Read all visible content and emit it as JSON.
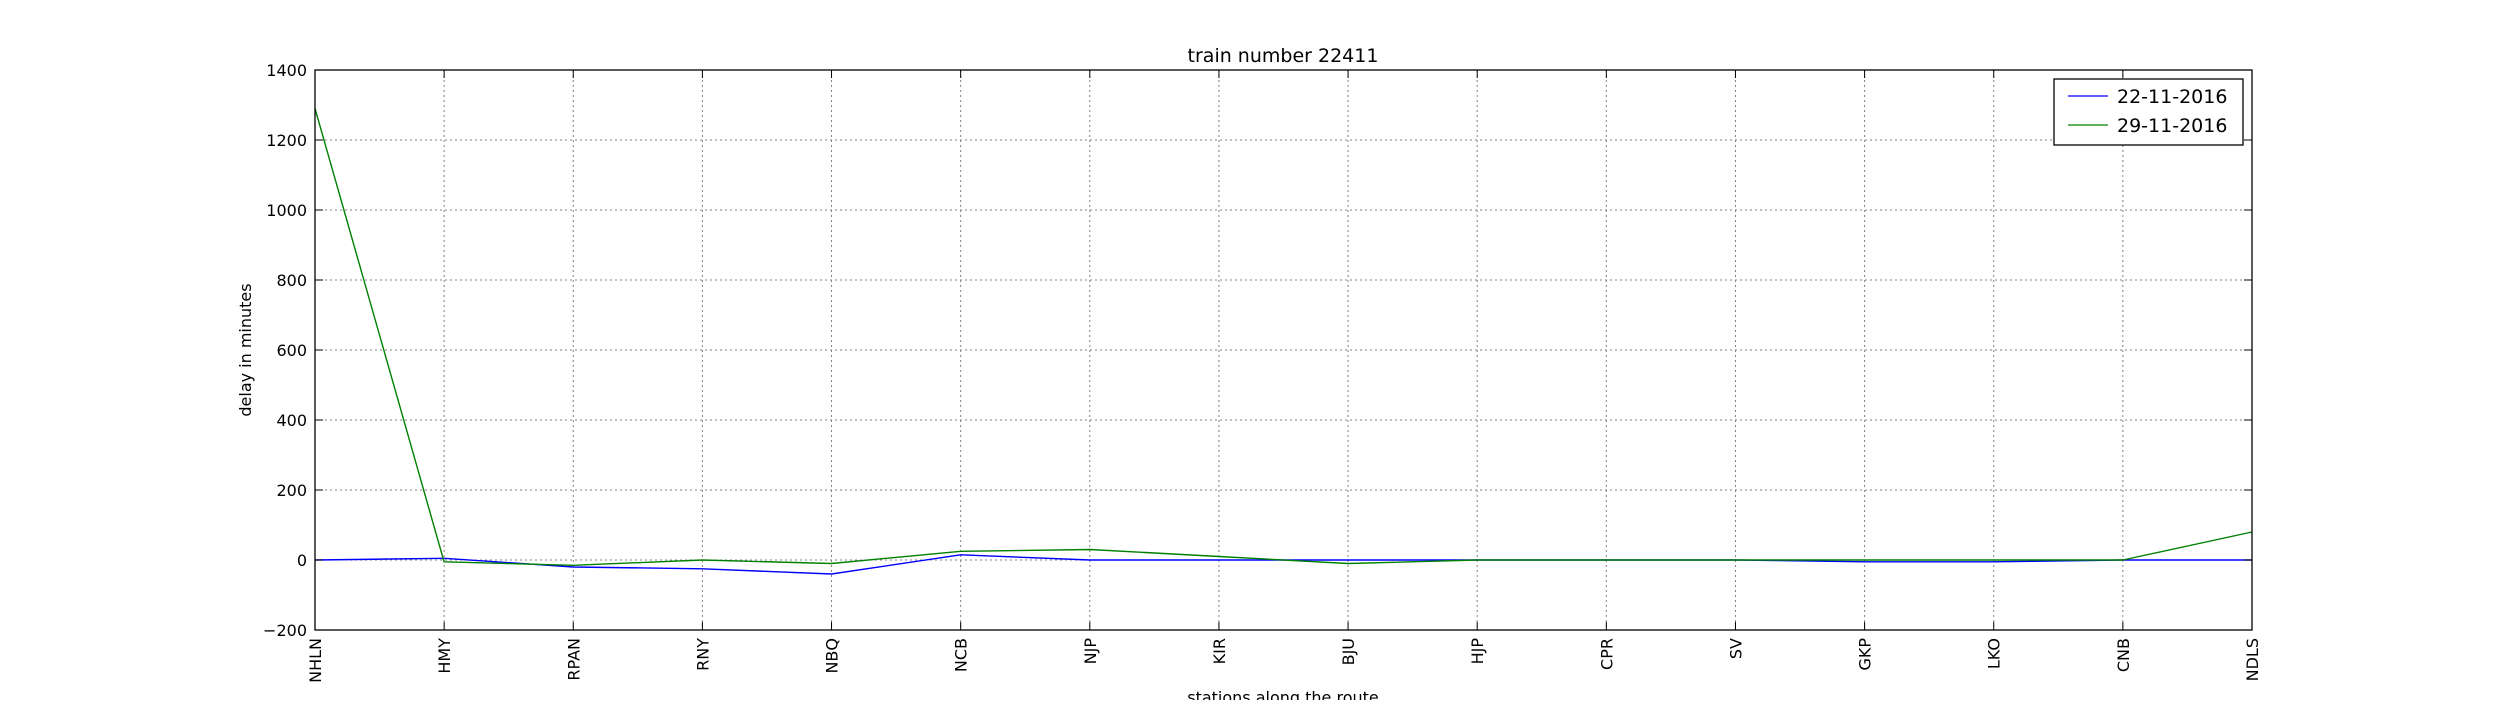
{
  "chart_data": {
    "type": "line",
    "title": "train number 22411",
    "xlabel": "stations along the route",
    "ylabel": "delay in minutes",
    "categories": [
      "NHLN",
      "HMY",
      "RPAN",
      "RNY",
      "NBQ",
      "NCB",
      "NJP",
      "KIR",
      "BJU",
      "HJP",
      "CPR",
      "SV",
      "GKP",
      "LKO",
      "CNB",
      "NDLS"
    ],
    "ylim": [
      -200,
      1400
    ],
    "yticks": [
      -200,
      0,
      200,
      400,
      600,
      800,
      1000,
      1200,
      1400
    ],
    "ytick_labels": [
      "−200",
      "0",
      "200",
      "400",
      "600",
      "800",
      "1000",
      "1200",
      "1400"
    ],
    "grid": true,
    "grid_style": "dotted",
    "legend_position": "top-right",
    "series": [
      {
        "name": "22-11-2016",
        "color": "#0000ff",
        "values": [
          0,
          5,
          -20,
          -25,
          -40,
          15,
          0,
          0,
          0,
          0,
          0,
          0,
          -5,
          -5,
          0,
          0
        ]
      },
      {
        "name": "29-11-2016",
        "color": "#008000",
        "values": [
          1290,
          -5,
          -15,
          0,
          -10,
          25,
          30,
          10,
          -10,
          0,
          0,
          0,
          0,
          0,
          0,
          80
        ]
      }
    ]
  }
}
